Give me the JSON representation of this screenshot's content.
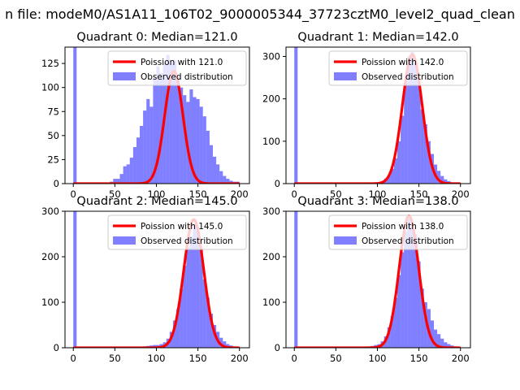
{
  "figure": {
    "suptitle": "n file: modeM0/AS1A11_106T02_9000005344_37723cztM0_level2_quad_clean"
  },
  "colors": {
    "hist": "#0000ff",
    "hist_alpha": 0.5,
    "poisson": "#ff0000",
    "axes": "#000000",
    "background": "#ffffff"
  },
  "chart_data": [
    {
      "type": "bar",
      "title": "Quadrant 0: Median=121.0",
      "xlim": [
        -10,
        212
      ],
      "ylim": [
        0,
        142
      ],
      "xticks": [
        0,
        50,
        100,
        150,
        200
      ],
      "yticks": [
        0,
        25,
        50,
        75,
        100,
        125
      ],
      "legend": "top-right",
      "median": 121.0,
      "poisson_peak": 117,
      "line_name": "Poission with 121.0",
      "hist_name": "Observed distribution",
      "bin_width": 4,
      "bins": [
        [
          0,
          142
        ],
        [
          44,
          2
        ],
        [
          48,
          5
        ],
        [
          52,
          5
        ],
        [
          56,
          10
        ],
        [
          60,
          18
        ],
        [
          64,
          20
        ],
        [
          68,
          27
        ],
        [
          72,
          38
        ],
        [
          76,
          48
        ],
        [
          80,
          60
        ],
        [
          84,
          76
        ],
        [
          88,
          88
        ],
        [
          92,
          80
        ],
        [
          96,
          110
        ],
        [
          100,
          122
        ],
        [
          104,
          115
        ],
        [
          108,
          125
        ],
        [
          112,
          134
        ],
        [
          116,
          126
        ],
        [
          120,
          128
        ],
        [
          124,
          112
        ],
        [
          128,
          100
        ],
        [
          132,
          92
        ],
        [
          136,
          85
        ],
        [
          140,
          98
        ],
        [
          144,
          90
        ],
        [
          148,
          88
        ],
        [
          152,
          80
        ],
        [
          156,
          70
        ],
        [
          160,
          55
        ],
        [
          164,
          40
        ],
        [
          168,
          28
        ],
        [
          172,
          20
        ],
        [
          176,
          13
        ],
        [
          180,
          8
        ],
        [
          184,
          5
        ],
        [
          188,
          3
        ],
        [
          192,
          2
        ],
        [
          196,
          2
        ]
      ]
    },
    {
      "type": "bar",
      "title": "Quadrant 1: Median=142.0",
      "xlim": [
        -10,
        212
      ],
      "ylim": [
        0,
        322
      ],
      "xticks": [
        0,
        50,
        100,
        150,
        200
      ],
      "yticks": [
        0,
        100,
        200,
        300
      ],
      "legend": "top-right",
      "median": 142.0,
      "poisson_peak": 305,
      "line_name": "Poission with 142.0",
      "hist_name": "Observed distribution",
      "bin_width": 4,
      "bins": [
        [
          0,
          322
        ],
        [
          100,
          3
        ],
        [
          104,
          6
        ],
        [
          108,
          12
        ],
        [
          112,
          20
        ],
        [
          116,
          35
        ],
        [
          120,
          60
        ],
        [
          124,
          100
        ],
        [
          128,
          160
        ],
        [
          132,
          240
        ],
        [
          136,
          300
        ],
        [
          140,
          310
        ],
        [
          144,
          285
        ],
        [
          148,
          240
        ],
        [
          152,
          175
        ],
        [
          156,
          140
        ],
        [
          160,
          100
        ],
        [
          164,
          70
        ],
        [
          168,
          45
        ],
        [
          172,
          30
        ],
        [
          176,
          18
        ],
        [
          180,
          10
        ],
        [
          184,
          6
        ],
        [
          188,
          3
        ],
        [
          192,
          2
        ]
      ]
    },
    {
      "type": "bar",
      "title": "Quadrant 2: Median=145.0",
      "xlim": [
        -10,
        212
      ],
      "ylim": [
        0,
        300
      ],
      "xticks": [
        0,
        50,
        100,
        150,
        200
      ],
      "yticks": [
        0,
        100,
        200,
        300
      ],
      "legend": "top-right",
      "median": 145.0,
      "poisson_peak": 282,
      "line_name": "Poission with 145.0",
      "hist_name": "Observed distribution",
      "bin_width": 4,
      "bins": [
        [
          0,
          300
        ],
        [
          84,
          3
        ],
        [
          88,
          4
        ],
        [
          92,
          5
        ],
        [
          96,
          6
        ],
        [
          100,
          6
        ],
        [
          104,
          8
        ],
        [
          108,
          12
        ],
        [
          112,
          20
        ],
        [
          116,
          35
        ],
        [
          120,
          60
        ],
        [
          124,
          85
        ],
        [
          128,
          130
        ],
        [
          132,
          180
        ],
        [
          136,
          220
        ],
        [
          140,
          245
        ],
        [
          144,
          270
        ],
        [
          148,
          255
        ],
        [
          152,
          220
        ],
        [
          156,
          150
        ],
        [
          160,
          110
        ],
        [
          164,
          75
        ],
        [
          168,
          50
        ],
        [
          172,
          35
        ],
        [
          176,
          22
        ],
        [
          180,
          14
        ],
        [
          184,
          8
        ],
        [
          188,
          5
        ],
        [
          192,
          3
        ]
      ]
    },
    {
      "type": "bar",
      "title": "Quadrant 3: Median=138.0",
      "xlim": [
        -10,
        212
      ],
      "ylim": [
        0,
        300
      ],
      "xticks": [
        0,
        50,
        100,
        150,
        200
      ],
      "yticks": [
        0,
        100,
        200,
        300
      ],
      "legend": "top-right",
      "median": 138.0,
      "poisson_peak": 290,
      "line_name": "Poission with 138.0",
      "hist_name": "Observed distribution",
      "bin_width": 4,
      "bins": [
        [
          0,
          300
        ],
        [
          84,
          2
        ],
        [
          88,
          3
        ],
        [
          92,
          4
        ],
        [
          96,
          6
        ],
        [
          100,
          8
        ],
        [
          104,
          14
        ],
        [
          108,
          25
        ],
        [
          112,
          45
        ],
        [
          116,
          70
        ],
        [
          120,
          110
        ],
        [
          124,
          160
        ],
        [
          128,
          210
        ],
        [
          132,
          255
        ],
        [
          136,
          285
        ],
        [
          140,
          265
        ],
        [
          144,
          250
        ],
        [
          148,
          190
        ],
        [
          152,
          130
        ],
        [
          156,
          100
        ],
        [
          160,
          85
        ],
        [
          164,
          60
        ],
        [
          168,
          40
        ],
        [
          172,
          30
        ],
        [
          176,
          20
        ],
        [
          180,
          12
        ],
        [
          184,
          8
        ],
        [
          188,
          5
        ],
        [
          192,
          3
        ]
      ]
    }
  ]
}
